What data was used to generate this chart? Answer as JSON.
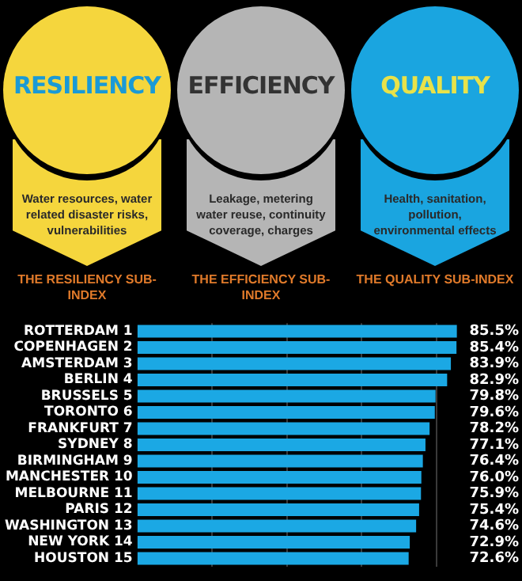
{
  "chart_data": {
    "type": "bar",
    "orientation": "horizontal",
    "annotations": [
      "RESILIENCY",
      "Water resources, water related disaster risks, vulnerabilities",
      "THE RESILIENCY SUB-INDEX",
      "EFFICIENCY",
      "Leakage, metering water reuse, continuity coverage, charges",
      "THE EFFICIENCY SUB-INDEX",
      "QUALITY",
      "Health, sanitation, pollution, environmental effects",
      "THE QUALITY SUB-INDEX"
    ],
    "categories": [
      "ROTTERDAM 1",
      "COPENHAGEN 2",
      "AMSTERDAM 3",
      "BERLIN 4",
      "BRUSSELS 5",
      "TORONTO 6",
      "FRANKFURT 7",
      "SYDNEY 8",
      "BIRMINGHAM 9",
      "MANCHESTER 10",
      "MELBOURNE 11",
      "PARIS 12",
      "WASHINGTON 13",
      "NEW YORK 14",
      "HOUSTON 15"
    ],
    "values": [
      85.5,
      85.4,
      83.9,
      82.9,
      79.8,
      79.6,
      78.2,
      77.1,
      76.4,
      76.0,
      75.9,
      75.4,
      74.6,
      72.9,
      72.6
    ],
    "value_labels": [
      "85.5%",
      "85.4%",
      "83.9%",
      "82.9%",
      "79.8%",
      "79.6%",
      "78.2%",
      "77.1%",
      "76.4%",
      "76.0%",
      "75.9%",
      "75.4%",
      "74.6%",
      "72.9%",
      "72.6%"
    ],
    "color": "#1ba8e4",
    "xlim": [
      0,
      86
    ],
    "xticks": [
      {
        "value": 20,
        "label": null
      },
      {
        "value": 40,
        "label": null
      },
      {
        "value": 60,
        "label": null
      },
      {
        "value": 80,
        "label": null
      }
    ],
    "grid": "x",
    "tick_labels": "y",
    "legend": false
  }
}
